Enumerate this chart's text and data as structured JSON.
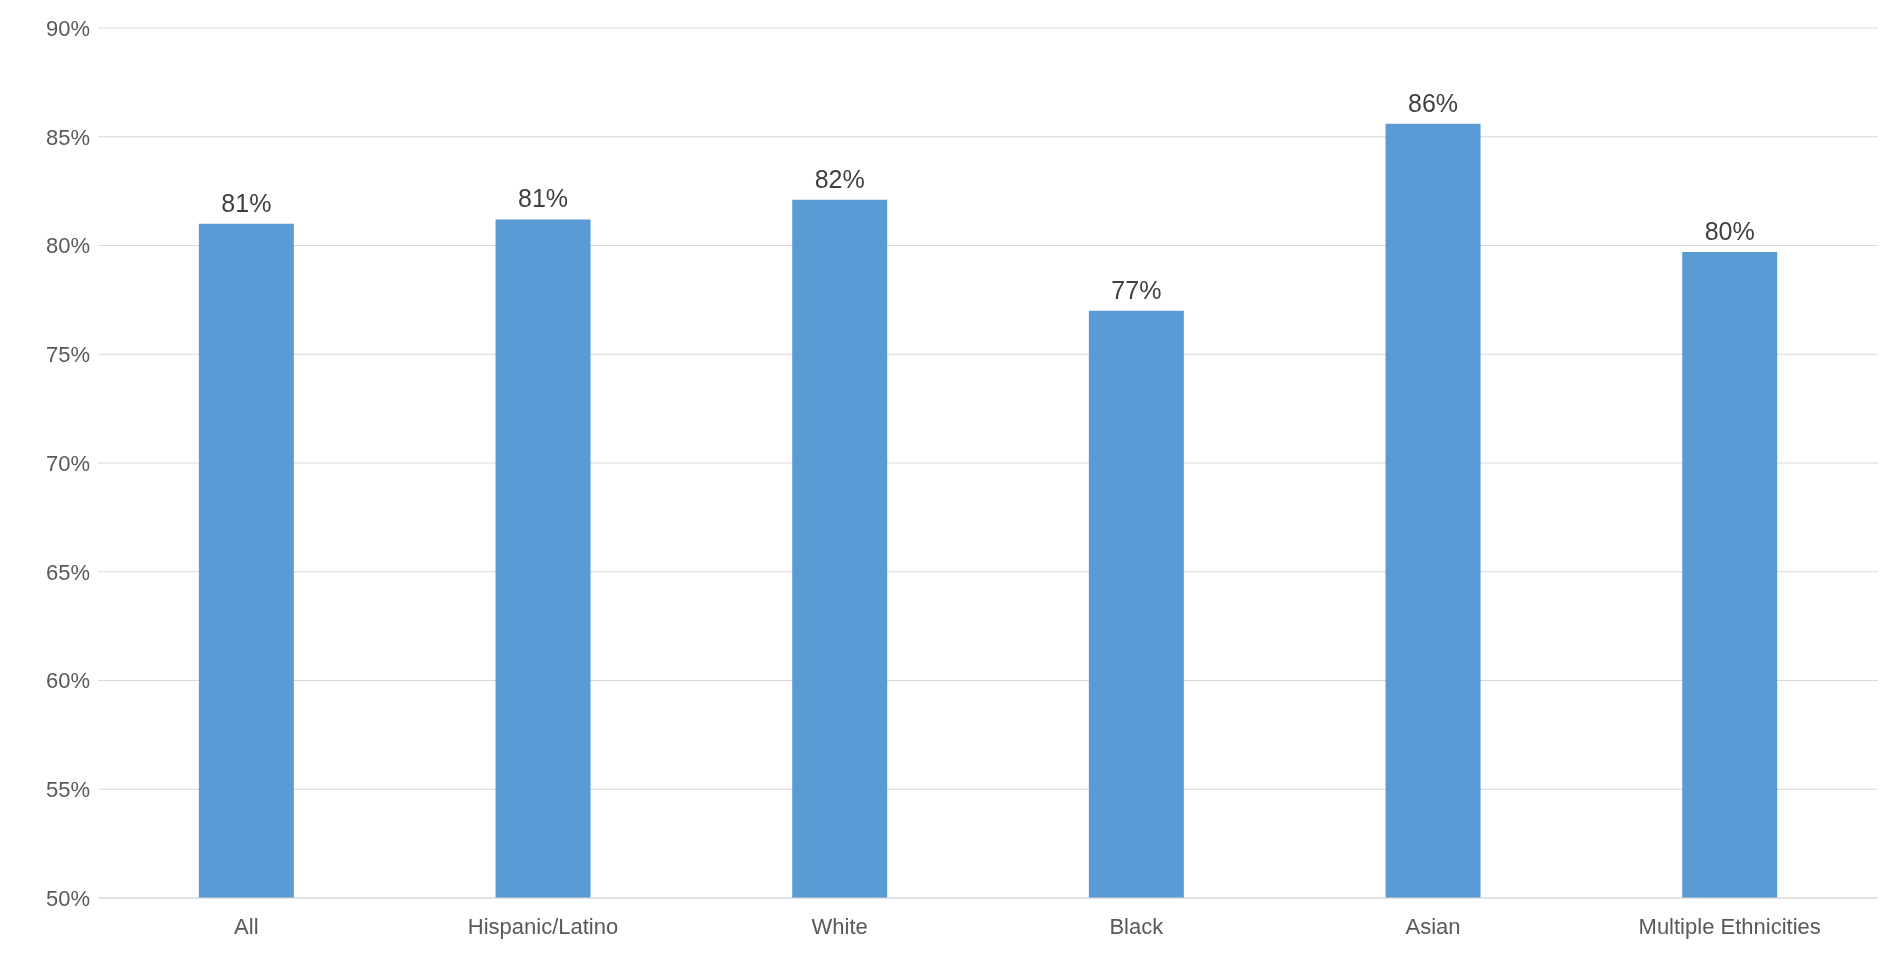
{
  "chart_data": {
    "type": "bar",
    "categories": [
      "All",
      "Hispanic/Latino",
      "White",
      "Black",
      "Asian",
      "Multiple Ethnicities"
    ],
    "values": [
      81,
      81.2,
      82.1,
      77,
      85.6,
      79.7
    ],
    "value_labels": [
      "81%",
      "81%",
      "82%",
      "77%",
      "86%",
      "80%"
    ],
    "color": "#5b9bd5",
    "ylim": [
      50,
      90
    ],
    "yticks": [
      {
        "value": 50,
        "label": "50%"
      },
      {
        "value": 55,
        "label": "55%"
      },
      {
        "value": 60,
        "label": "60%"
      },
      {
        "value": 65,
        "label": "65%"
      },
      {
        "value": 70,
        "label": "70%"
      },
      {
        "value": 75,
        "label": "75%"
      },
      {
        "value": 80,
        "label": "80%"
      },
      {
        "value": 85,
        "label": "85%"
      },
      {
        "value": 90,
        "label": "90%"
      }
    ],
    "grid": "y",
    "legend": false
  }
}
